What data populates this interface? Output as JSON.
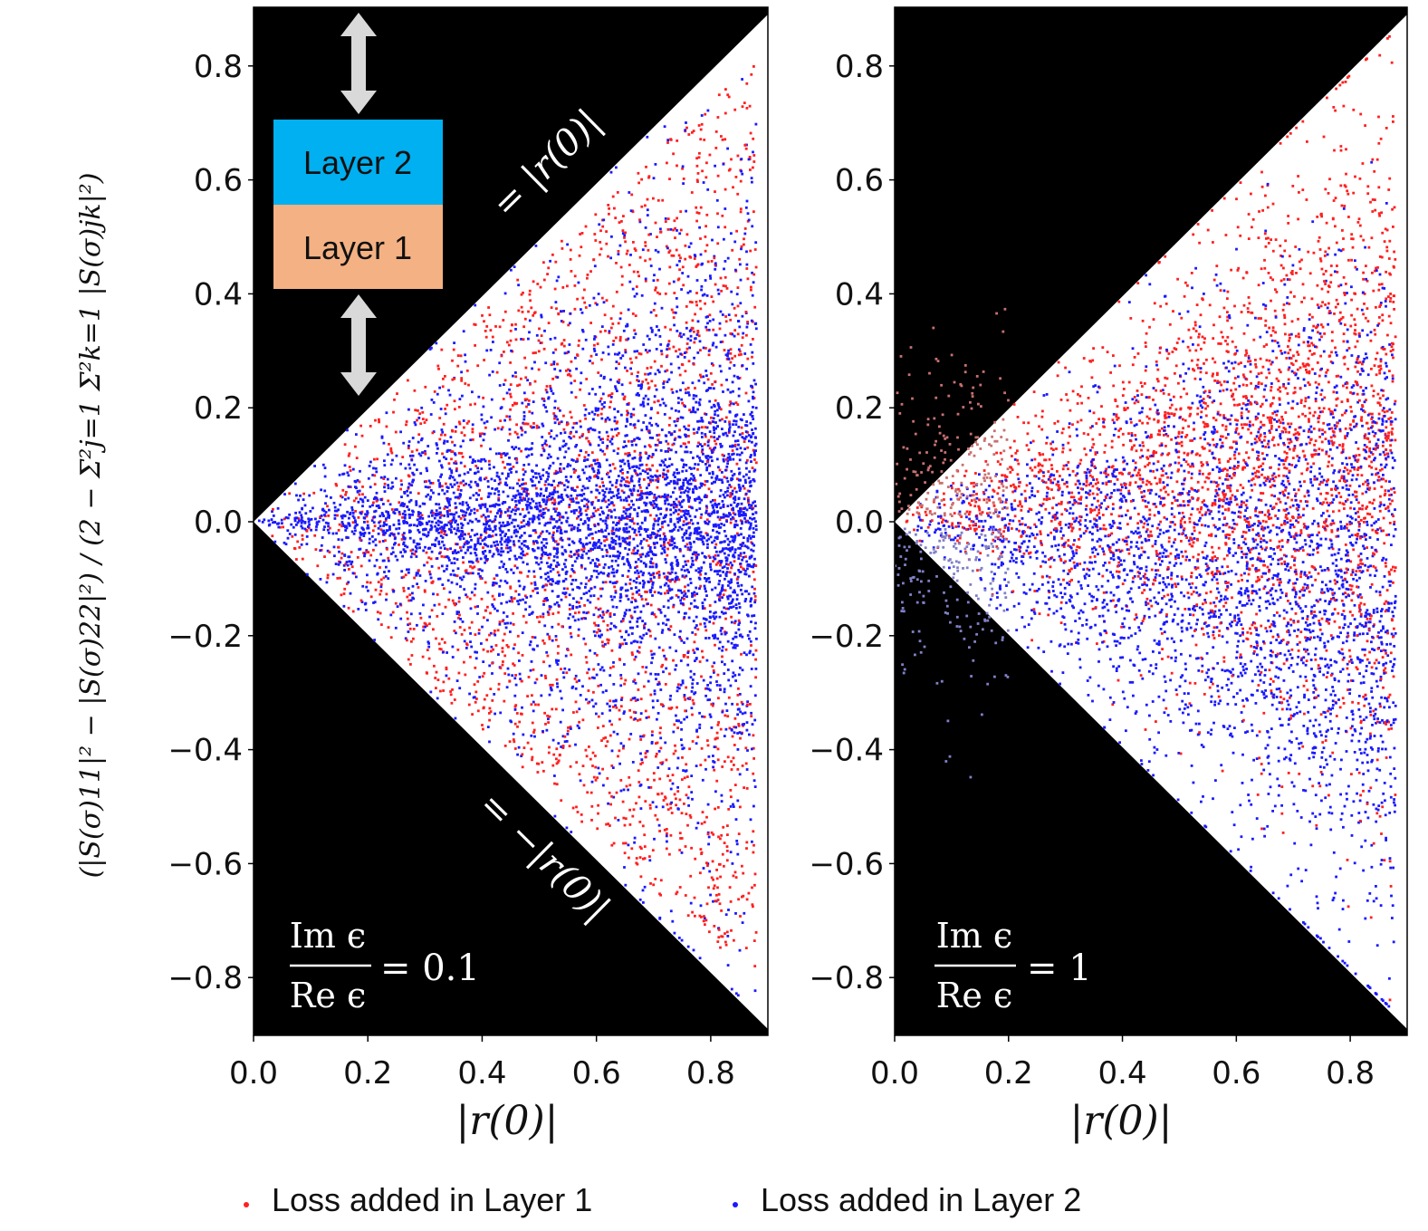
{
  "chart_data": [
    {
      "type": "scatter",
      "panel": "left",
      "xlabel": "|r(0)|",
      "ylabel": "(|S(σ)11|² − |S(σ)22|²) / (2 − Σ²j=1 Σ²k=1 |S(σ)jk|²)",
      "xlim": [
        0.0,
        0.9
      ],
      "ylim": [
        -0.9,
        0.9
      ],
      "xticks": [
        "0.0",
        "0.2",
        "0.4",
        "0.6",
        "0.8"
      ],
      "yticks": [
        "0.8",
        "0.6",
        "0.4",
        "0.2",
        "0.0",
        "−0.2",
        "−0.4",
        "−0.6",
        "−0.8"
      ],
      "bound_upper_label": "= |r(0)|",
      "bound_lower_label": "= −|r(0)|",
      "ratio_text": "Im ϵ / Re ϵ = 0.1",
      "ratio_num": "Im ϵ",
      "ratio_den": "Re ϵ",
      "ratio_value": "= 0.1",
      "series": [
        {
          "name": "Loss added in Layer 1",
          "color": "#ff2020",
          "distribution": "triangle |y| ≤ |r(0)|, x in [0, 0.88], spread toward bounds"
        },
        {
          "name": "Loss added in Layer 2",
          "color": "#1a1aff",
          "distribution": "triangle |y| ≤ |r(0)|, x in [0, 0.88], concentrated near y = 0"
        }
      ]
    },
    {
      "type": "scatter",
      "panel": "right",
      "xlabel": "|r(0)|",
      "xlim": [
        0.0,
        0.9
      ],
      "ylim": [
        -0.9,
        0.9
      ],
      "xticks": [
        "0.0",
        "0.2",
        "0.4",
        "0.6",
        "0.8"
      ],
      "yticks": [
        "0.8",
        "0.6",
        "0.4",
        "0.2",
        "0.0",
        "−0.2",
        "−0.4",
        "−0.6",
        "−0.8"
      ],
      "ratio_text": "Im ϵ / Re ϵ = 1",
      "ratio_num": "Im ϵ",
      "ratio_den": "Re ϵ",
      "ratio_value": "= 1",
      "series": [
        {
          "name": "Loss added in Layer 1",
          "color": "#ff2020",
          "distribution": "shifted positive, fills upper triangle, some points outside bound near x < 0.2"
        },
        {
          "name": "Loss added in Layer 2",
          "color": "#1a1aff",
          "distribution": "shifted negative, fills lower triangle, some points outside bound near x < 0.2"
        }
      ]
    }
  ],
  "inset": {
    "layer2_label": "Layer 2",
    "layer1_label": "Layer 1",
    "layer2_color": "#00b0f0",
    "layer1_color": "#f4b183"
  },
  "legend": {
    "layer1": "Loss added in Layer 1",
    "layer2": "Loss added in Layer 2"
  },
  "colors": {
    "background": "#000000",
    "red": "#ff2020",
    "blue": "#1a1aff",
    "arrow": "#d9d9d9"
  }
}
